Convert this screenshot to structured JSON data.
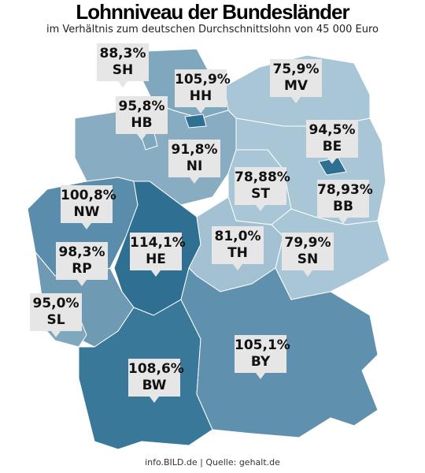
{
  "header": {
    "title": "Lohnniveau der Bundesländer",
    "subtitle": "im Verhältnis zum deutschen Durchschnittslohn von 45 000 Euro"
  },
  "regions": [
    {
      "value": "88,3%",
      "code": "SH"
    },
    {
      "value": "105,9%",
      "code": "HH"
    },
    {
      "value": "75,9%",
      "code": "MV"
    },
    {
      "value": "95,8%",
      "code": "HB"
    },
    {
      "value": "94,5%",
      "code": "BE"
    },
    {
      "value": "91,8%",
      "code": "NI"
    },
    {
      "value": "78,88%",
      "code": "ST"
    },
    {
      "value": "78,93%",
      "code": "BB"
    },
    {
      "value": "100,8%",
      "code": "NW"
    },
    {
      "value": "114,1%",
      "code": "HE"
    },
    {
      "value": "81,0%",
      "code": "TH"
    },
    {
      "value": "79,9%",
      "code": "SN"
    },
    {
      "value": "98,3%",
      "code": "RP"
    },
    {
      "value": "95,0%",
      "code": "SL"
    },
    {
      "value": "105,1%",
      "code": "BY"
    },
    {
      "value": "108,6%",
      "code": "BW"
    }
  ],
  "footer": "info.BILD.de | Quelle: gehalt.de"
}
